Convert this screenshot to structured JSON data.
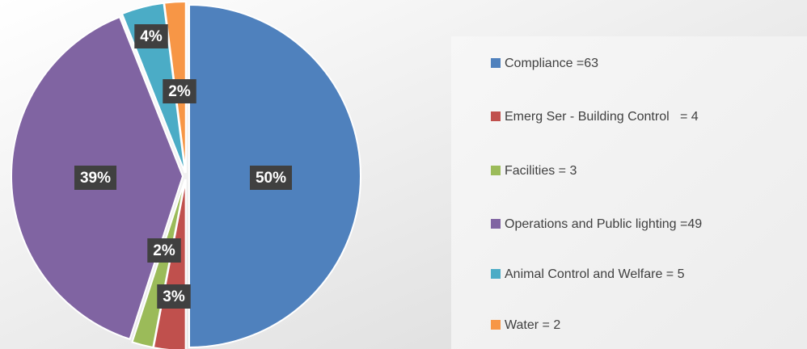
{
  "chart_data": {
    "type": "pie",
    "categories": [
      "Compliance =63",
      "Emerg Ser - Building Control   = 4",
      "Facilities = 3",
      "Operations and Public lighting =49",
      "Animal Control and Welfare = 5",
      "Water = 2"
    ],
    "values": [
      50,
      3,
      2,
      39,
      4,
      2
    ],
    "value_labels": [
      "50%",
      "3%",
      "2%",
      "39%",
      "4%",
      "2%"
    ],
    "colors": [
      "#4f81bd",
      "#c0504d",
      "#9bbb59",
      "#8064a2",
      "#4bacc6",
      "#f79646"
    ],
    "legend": "right"
  }
}
